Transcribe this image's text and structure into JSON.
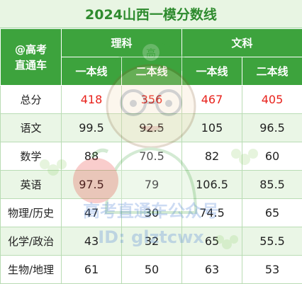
{
  "title": "2024山西一模分数线",
  "header": {
    "corner_line1": "@高考",
    "corner_line2": "直通车",
    "science": "理科",
    "liberal": "文科",
    "tier1": "一本线",
    "tier2": "二本线"
  },
  "rows": [
    {
      "subject": "总分",
      "values": [
        "418",
        "356",
        "467",
        "405"
      ]
    },
    {
      "subject": "语文",
      "values": [
        "99.5",
        "92.5",
        "105",
        "96.5"
      ]
    },
    {
      "subject": "数学",
      "values": [
        "88",
        "70.5",
        "82",
        "60"
      ]
    },
    {
      "subject": "英语",
      "values": [
        "97.5",
        "79",
        "106.5",
        "85.5"
      ]
    },
    {
      "subject": "物理/历史",
      "values": [
        "47",
        "30",
        "74.5",
        "65"
      ]
    },
    {
      "subject": "化学/政治",
      "values": [
        "43",
        "32",
        "65",
        "55.5"
      ]
    },
    {
      "subject": "生物/地理",
      "values": [
        "61",
        "50",
        "63",
        "53"
      ]
    }
  ],
  "watermark": {
    "line1": "高考直通车公众号",
    "line2": "ID: glztcwx",
    "badge": "高"
  },
  "colors": {
    "header_green": "#3da33d",
    "title_green": "#2e8b2e",
    "total_red": "#e8221c"
  }
}
